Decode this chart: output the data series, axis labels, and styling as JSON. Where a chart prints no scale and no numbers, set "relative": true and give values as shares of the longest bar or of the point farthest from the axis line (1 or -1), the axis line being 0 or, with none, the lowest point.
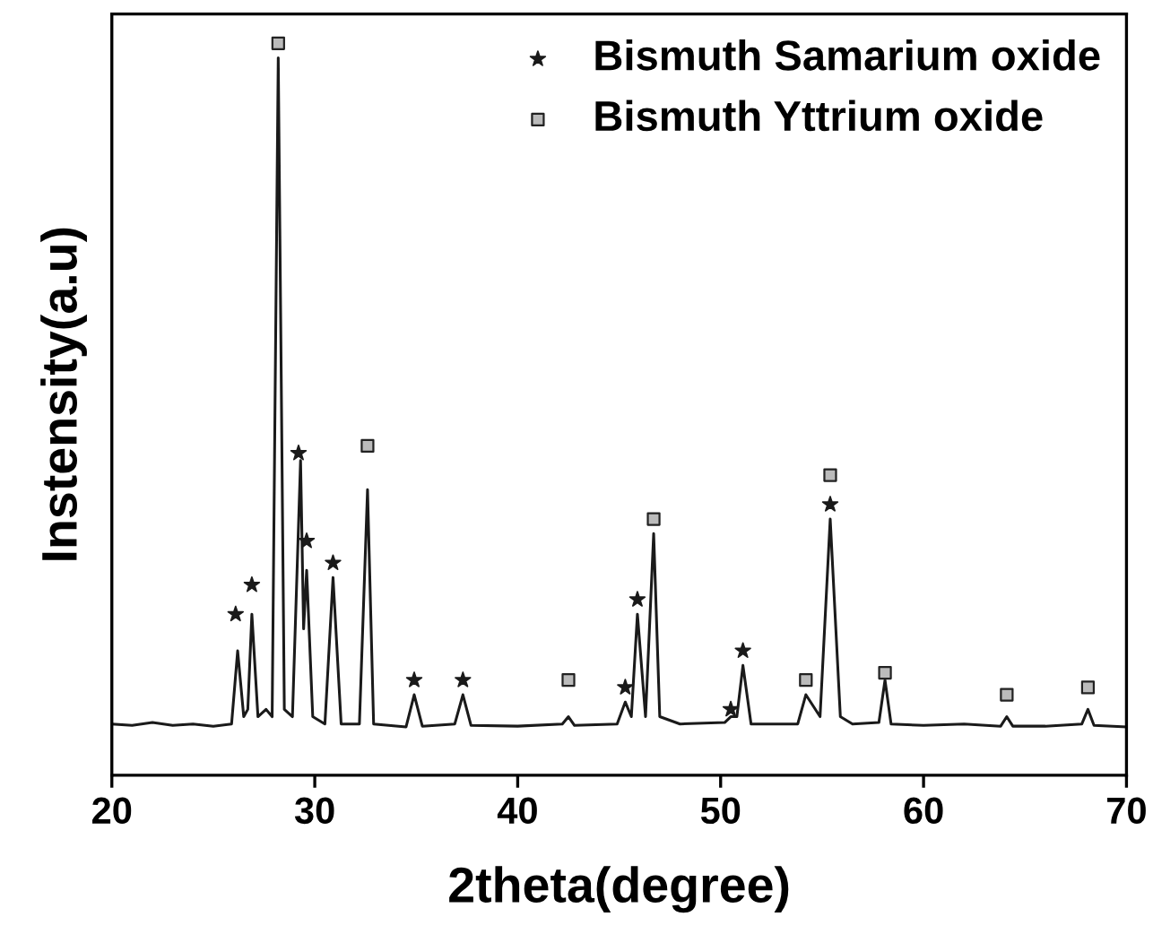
{
  "chart_data": {
    "type": "line",
    "relative": true,
    "xlabel": "2theta(degree)",
    "ylabel": "Instensity(a.u)",
    "xlim": [
      20,
      70
    ],
    "xticks": [
      20,
      30,
      40,
      50,
      60,
      70
    ],
    "tick_labels": "x",
    "grid": false,
    "legend": "top right",
    "series": [
      {
        "color": "#1a1a1a",
        "marker": "none",
        "x": [
          20,
          21,
          22,
          23,
          24,
          25,
          25.9,
          26.2,
          26.5,
          26.7,
          26.9,
          27.2,
          27.6,
          27.9,
          28.2,
          28.5,
          28.9,
          29.3,
          29.45,
          29.6,
          29.9,
          30.5,
          30.9,
          31.3,
          32.2,
          32.6,
          32.9,
          34.5,
          34.9,
          35.3,
          36.9,
          37.3,
          37.7,
          40,
          42.2,
          42.5,
          42.8,
          44.9,
          45.3,
          45.6,
          45.9,
          46.3,
          46.7,
          47.0,
          48,
          50.2,
          50.5,
          50.8,
          51.1,
          51.5,
          53.8,
          54.2,
          54.9,
          55.4,
          55.9,
          56.5,
          57.8,
          58.1,
          58.4,
          60,
          62,
          63.8,
          64.1,
          64.4,
          66,
          67.8,
          68.1,
          68.4,
          70
        ],
        "values": [
          0.07,
          0.068,
          0.072,
          0.068,
          0.07,
          0.067,
          0.07,
          0.17,
          0.08,
          0.09,
          0.22,
          0.08,
          0.09,
          0.08,
          0.98,
          0.09,
          0.08,
          0.43,
          0.2,
          0.28,
          0.08,
          0.07,
          0.27,
          0.07,
          0.07,
          0.39,
          0.07,
          0.066,
          0.11,
          0.067,
          0.07,
          0.11,
          0.068,
          0.067,
          0.07,
          0.08,
          0.068,
          0.07,
          0.1,
          0.08,
          0.22,
          0.08,
          0.33,
          0.08,
          0.07,
          0.072,
          0.08,
          0.08,
          0.15,
          0.07,
          0.07,
          0.11,
          0.08,
          0.35,
          0.08,
          0.07,
          0.072,
          0.13,
          0.07,
          0.068,
          0.07,
          0.067,
          0.08,
          0.067,
          0.067,
          0.07,
          0.09,
          0.068,
          0.066
        ]
      },
      {
        "type": "scatter",
        "name": "Bismuth Samarium oxide",
        "color": "#1a1a1a",
        "marker": "star",
        "x": [
          26.1,
          26.9,
          29.2,
          29.6,
          30.9,
          34.9,
          37.3,
          45.3,
          45.9,
          50.5,
          51.1,
          55.4
        ],
        "values": [
          0.22,
          0.26,
          0.44,
          0.32,
          0.29,
          0.13,
          0.13,
          0.12,
          0.24,
          0.09,
          0.17,
          0.37
        ]
      },
      {
        "type": "scatter",
        "name": "Bismuth Yttrium oxide",
        "color": "#bbbbbb",
        "marker": "square",
        "x": [
          28.2,
          32.6,
          42.5,
          46.7,
          54.2,
          55.4,
          58.1,
          64.1,
          68.1
        ],
        "values": [
          1.0,
          0.45,
          0.13,
          0.35,
          0.13,
          0.41,
          0.14,
          0.11,
          0.12
        ]
      }
    ]
  }
}
